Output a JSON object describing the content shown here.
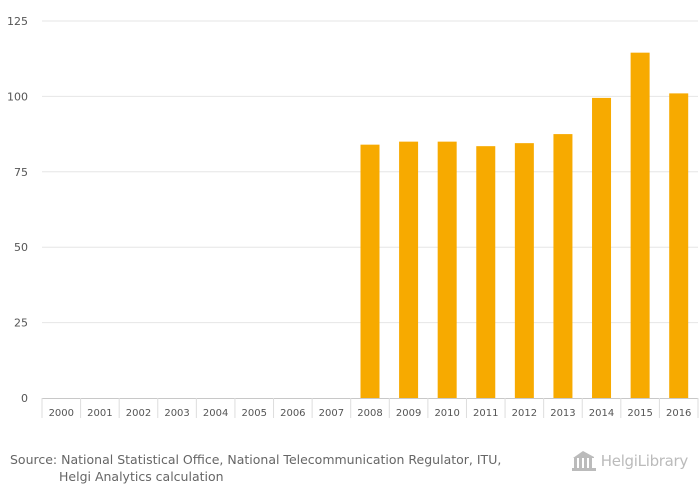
{
  "chart_data": {
    "type": "bar",
    "categories": [
      "2000",
      "2001",
      "2002",
      "2003",
      "2004",
      "2005",
      "2006",
      "2007",
      "2008",
      "2009",
      "2010",
      "2011",
      "2012",
      "2013",
      "2014",
      "2015",
      "2016"
    ],
    "values": [
      0,
      0,
      0,
      0,
      0,
      0,
      0,
      0,
      84,
      85,
      85,
      83.5,
      84.5,
      87.5,
      99.5,
      114.5,
      101
    ],
    "yticks": [
      "0",
      "25",
      "50",
      "75",
      "100",
      "125"
    ],
    "ylim": [
      0,
      125
    ],
    "bar_color": "#f7aa00",
    "grid": true,
    "title": "",
    "xlabel": "",
    "ylabel": ""
  },
  "source": {
    "label": "Source:",
    "line1": "National Statistical Office, National Telecommunication Regulator, ITU,",
    "line2": "Helgi Analytics calculation"
  },
  "brand": {
    "name": "HelgiLibrary",
    "logo_icon": "library-building-icon"
  },
  "colors": {
    "grid": "#e6e6e6",
    "axis_text": "#555555",
    "bar": "#f7aa00"
  }
}
